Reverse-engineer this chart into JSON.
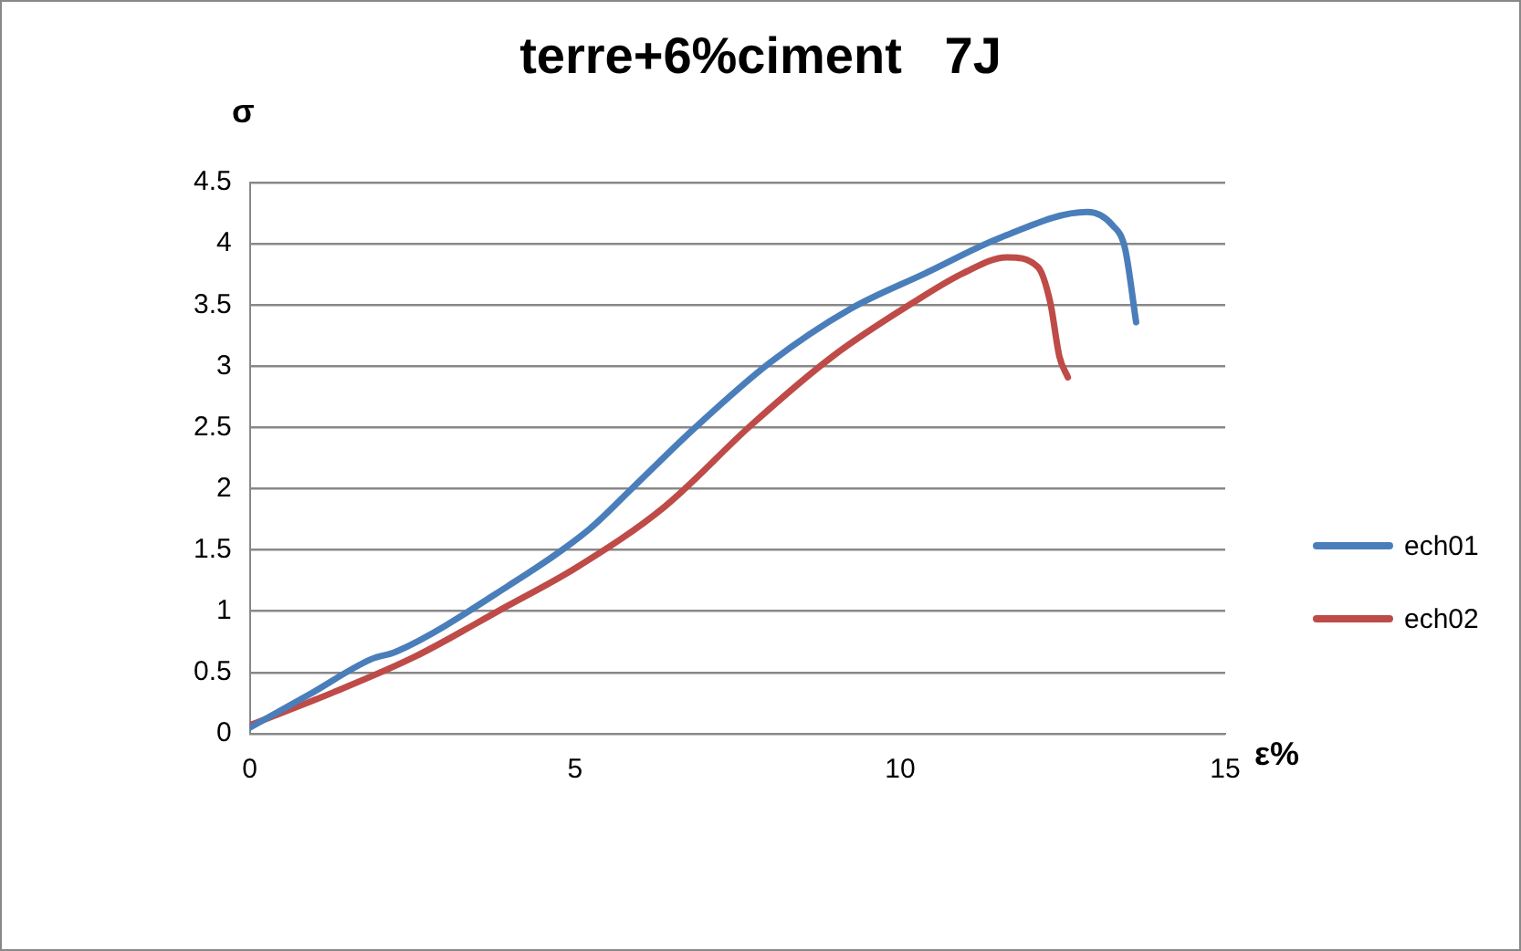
{
  "chart_data": {
    "type": "line",
    "title": "terre+6%ciment   7J",
    "xlabel": "ε%",
    "ylabel": "σ",
    "xlim": [
      0,
      15
    ],
    "xticks": [
      0,
      5,
      10,
      15
    ],
    "ylim": [
      0,
      4.5
    ],
    "yticks": [
      0,
      0.5,
      1,
      1.5,
      2,
      2.5,
      3,
      3.5,
      4,
      4.5
    ],
    "grid": "y",
    "legend": "right",
    "marker": "none",
    "series": [
      {
        "name": "ech01",
        "color": "#4a7ebb",
        "x": [
          0,
          0.91,
          1.87,
          2.25,
          3.98,
          5.22,
          5.89,
          6.85,
          8.0,
          9.24,
          10.39,
          11.54,
          12.88,
          13.27,
          13.46,
          13.63
        ],
        "values": [
          0.05,
          0.32,
          0.61,
          0.67,
          1.21,
          1.67,
          2.01,
          2.5,
          3.03,
          3.47,
          3.76,
          4.05,
          4.26,
          4.15,
          3.96,
          3.36
        ]
      },
      {
        "name": "ech02",
        "color": "#be4b48",
        "x": [
          0,
          1.29,
          2.54,
          3.88,
          5.03,
          6.37,
          7.71,
          8.96,
          10.2,
          10.97,
          11.64,
          12.12,
          12.31,
          12.45,
          12.58
        ],
        "values": [
          0.07,
          0.34,
          0.63,
          1.02,
          1.36,
          1.85,
          2.52,
          3.08,
          3.52,
          3.76,
          3.89,
          3.81,
          3.52,
          3.08,
          2.91
        ]
      }
    ]
  }
}
